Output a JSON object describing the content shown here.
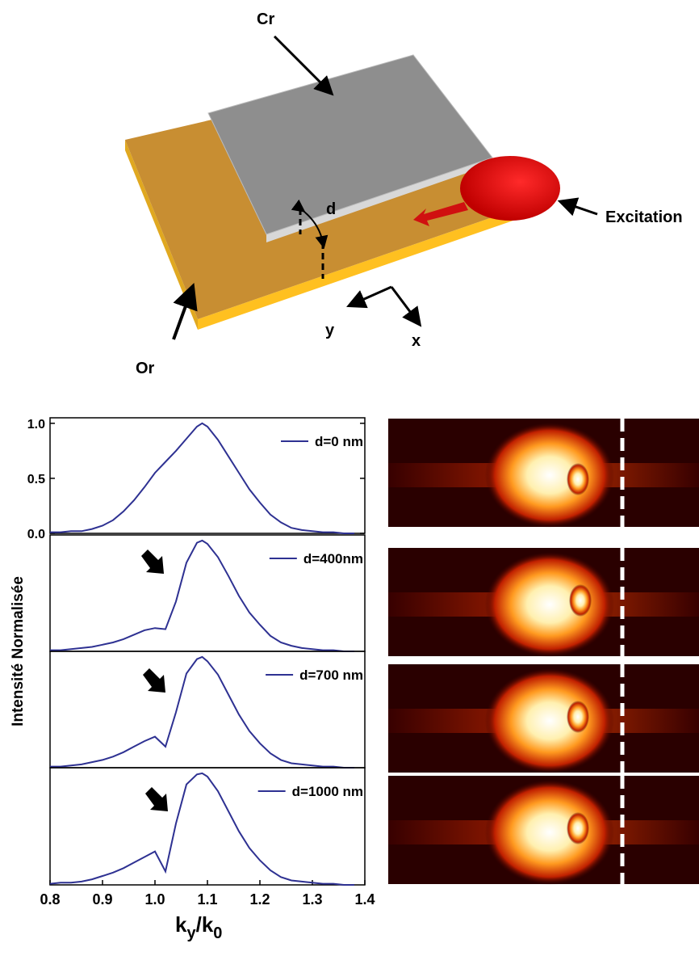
{
  "diagram": {
    "labels": {
      "cr": "Cr",
      "d": "d",
      "excitation": "Excitation",
      "or": "Or",
      "y": "y",
      "x": "x"
    }
  },
  "chart_data": [
    {
      "type": "line",
      "ylabel": "Intensité Normalisée",
      "x": [
        0.8,
        0.82,
        0.84,
        0.86,
        0.88,
        0.9,
        0.92,
        0.94,
        0.96,
        0.98,
        1.0,
        1.02,
        1.04,
        1.06,
        1.08,
        1.09,
        1.1,
        1.12,
        1.14,
        1.16,
        1.18,
        1.2,
        1.22,
        1.24,
        1.26,
        1.28,
        1.3,
        1.32,
        1.34,
        1.36,
        1.38
      ],
      "series": [
        {
          "name": "d=0 nm",
          "color": "#2e3192",
          "values": [
            0.01,
            0.01,
            0.02,
            0.02,
            0.04,
            0.07,
            0.12,
            0.2,
            0.3,
            0.42,
            0.55,
            0.65,
            0.75,
            0.86,
            0.97,
            1.0,
            0.97,
            0.85,
            0.7,
            0.55,
            0.4,
            0.28,
            0.17,
            0.1,
            0.05,
            0.03,
            0.02,
            0.01,
            0.01,
            0,
            0
          ]
        }
      ],
      "xlim": [
        0.8,
        1.4
      ],
      "ylim": [
        0,
        1.05
      ],
      "yticks": [
        {
          "value": 0,
          "label": "0.0"
        },
        0.5,
        {
          "value": 1,
          "label": "1.0"
        }
      ],
      "legend": "upper right"
    },
    {
      "type": "line",
      "x": [
        0.8,
        0.82,
        0.84,
        0.86,
        0.88,
        0.9,
        0.92,
        0.94,
        0.96,
        0.98,
        1.0,
        1.02,
        1.04,
        1.06,
        1.08,
        1.09,
        1.1,
        1.12,
        1.14,
        1.16,
        1.18,
        1.2,
        1.22,
        1.24,
        1.26,
        1.28,
        1.3,
        1.32,
        1.34,
        1.36,
        1.38
      ],
      "series": [
        {
          "name": "d=400nm",
          "color": "#2e3192",
          "values": [
            0.01,
            0.01,
            0.02,
            0.03,
            0.04,
            0.06,
            0.08,
            0.11,
            0.15,
            0.19,
            0.21,
            0.2,
            0.45,
            0.8,
            0.98,
            1.0,
            0.97,
            0.85,
            0.68,
            0.5,
            0.35,
            0.24,
            0.14,
            0.08,
            0.05,
            0.03,
            0.02,
            0.01,
            0.01,
            0,
            0
          ]
        }
      ],
      "xlim": [
        0.8,
        1.4
      ],
      "ylim": [
        0,
        1.05
      ],
      "legend": "upper right"
    },
    {
      "type": "line",
      "x": [
        0.8,
        0.82,
        0.84,
        0.86,
        0.88,
        0.9,
        0.92,
        0.94,
        0.96,
        0.98,
        1.0,
        1.02,
        1.04,
        1.06,
        1.08,
        1.09,
        1.1,
        1.12,
        1.14,
        1.16,
        1.18,
        1.2,
        1.22,
        1.24,
        1.26,
        1.28,
        1.3,
        1.32,
        1.34,
        1.36,
        1.38
      ],
      "series": [
        {
          "name": "d=700 nm",
          "color": "#2e3192",
          "values": [
            0.01,
            0.01,
            0.02,
            0.03,
            0.05,
            0.07,
            0.1,
            0.14,
            0.19,
            0.24,
            0.28,
            0.19,
            0.5,
            0.85,
            0.98,
            1.0,
            0.96,
            0.84,
            0.66,
            0.48,
            0.33,
            0.22,
            0.13,
            0.07,
            0.04,
            0.03,
            0.02,
            0.01,
            0.01,
            0,
            0
          ]
        }
      ],
      "xlim": [
        0.8,
        1.4
      ],
      "ylim": [
        0,
        1.05
      ],
      "legend": "upper right"
    },
    {
      "type": "line",
      "xlabel": [
        "k",
        "y",
        "/k",
        "0"
      ],
      "x": [
        0.8,
        0.82,
        0.84,
        0.86,
        0.88,
        0.9,
        0.92,
        0.94,
        0.96,
        0.98,
        1.0,
        1.02,
        1.04,
        1.06,
        1.08,
        1.09,
        1.1,
        1.12,
        1.14,
        1.16,
        1.18,
        1.2,
        1.22,
        1.24,
        1.26,
        1.28,
        1.3,
        1.32,
        1.34,
        1.36,
        1.38
      ],
      "series": [
        {
          "name": "d=1000 nm",
          "color": "#2e3192",
          "values": [
            0.01,
            0.02,
            0.02,
            0.03,
            0.05,
            0.08,
            0.11,
            0.15,
            0.2,
            0.25,
            0.3,
            0.12,
            0.55,
            0.9,
            0.99,
            1.0,
            0.97,
            0.84,
            0.66,
            0.48,
            0.33,
            0.22,
            0.13,
            0.07,
            0.04,
            0.03,
            0.02,
            0.01,
            0.01,
            0,
            0
          ]
        }
      ],
      "xlim": [
        0.8,
        1.4
      ],
      "ylim": [
        0,
        1.05
      ],
      "xticks": [
        0.8,
        0.9,
        {
          "value": 1,
          "label": "1.0"
        },
        1.1,
        1.2,
        1.3,
        1.4
      ],
      "legend": "upper right"
    }
  ]
}
